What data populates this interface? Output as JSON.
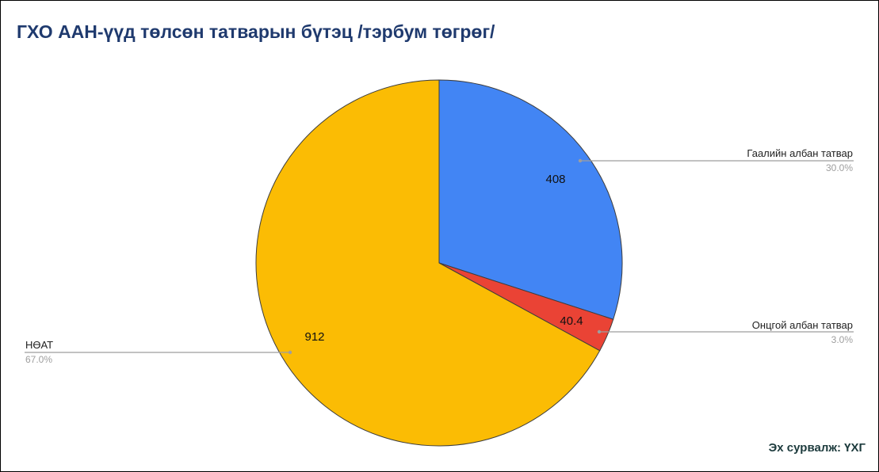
{
  "chart_data": {
    "type": "pie",
    "title": "ГХО ААН-үүд төлсөн татварын бүтэц /тэрбум төгрөг/",
    "slices": [
      {
        "label": "Гаалийн албан татвар",
        "value": 408,
        "value_label": "408",
        "percent_label": "30.0%",
        "color": "#4285f4"
      },
      {
        "label": "Онцгой албан татвар",
        "value": 40.4,
        "value_label": "40.4",
        "percent_label": "3.0%",
        "color": "#ea4335"
      },
      {
        "label": "НӨАТ",
        "value": 912,
        "value_label": "912",
        "percent_label": "67.0%",
        "color": "#fbbc04"
      }
    ],
    "legend": "none"
  },
  "footer": {
    "source": "Эх сурвалж: ҮХГ"
  }
}
